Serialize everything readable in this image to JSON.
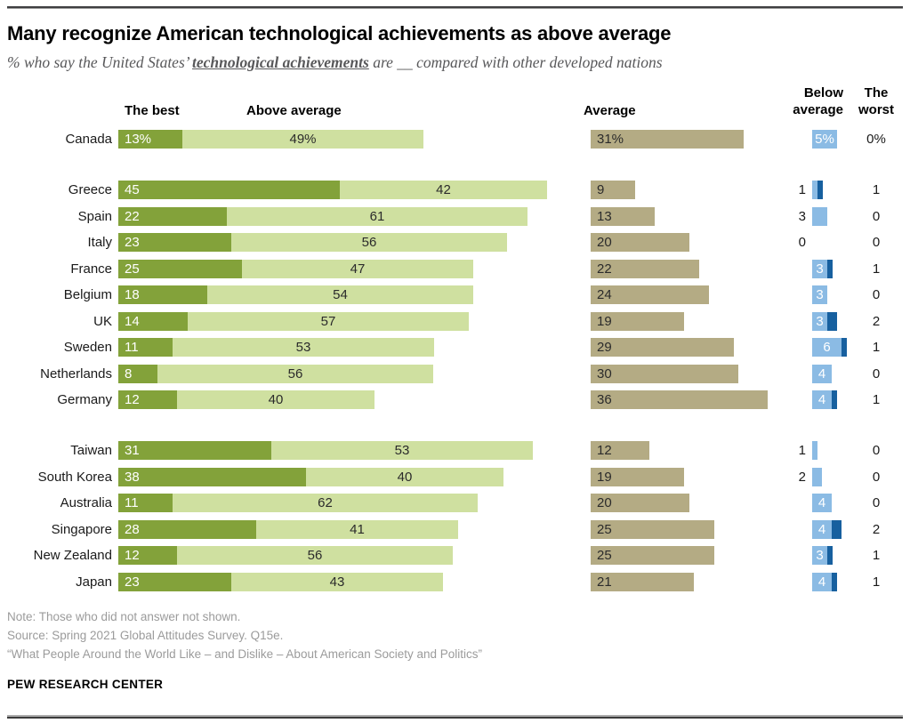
{
  "header": {
    "title": "Many recognize American technological achievements as above average",
    "subtitle_prefix": "% who say the United States’ ",
    "subtitle_emphasis": "technological achievements",
    "subtitle_suffix": " are __ compared with other developed nations"
  },
  "columns": {
    "best": "The best",
    "above": "Above average",
    "average": "Average",
    "below_line1": "Below",
    "below_line2": "average",
    "worst_line1": "The",
    "worst_line2": "worst"
  },
  "colors": {
    "best": "#83a23a",
    "above": "#cfe0a0",
    "average": "#b4ab84",
    "below": "#8bbbe4",
    "worst": "#17609f"
  },
  "rows": [
    {
      "country": "Canada",
      "best": 13,
      "above": 49,
      "average": 31,
      "below": 5,
      "worst": 0,
      "pct": true,
      "below_inside": true,
      "group": 0
    },
    {
      "country": "Greece",
      "best": 45,
      "above": 42,
      "average": 9,
      "below": 1,
      "worst": 1,
      "pct": false,
      "below_inside": false,
      "group": 1
    },
    {
      "country": "Spain",
      "best": 22,
      "above": 61,
      "average": 13,
      "below": 3,
      "worst": 0,
      "pct": false,
      "below_inside": false,
      "group": 1
    },
    {
      "country": "Italy",
      "best": 23,
      "above": 56,
      "average": 20,
      "below": 0,
      "worst": 0,
      "pct": false,
      "below_inside": false,
      "group": 1
    },
    {
      "country": "France",
      "best": 25,
      "above": 47,
      "average": 22,
      "below": 3,
      "worst": 1,
      "pct": false,
      "below_inside": true,
      "group": 1
    },
    {
      "country": "Belgium",
      "best": 18,
      "above": 54,
      "average": 24,
      "below": 3,
      "worst": 0,
      "pct": false,
      "below_inside": true,
      "group": 1
    },
    {
      "country": "UK",
      "best": 14,
      "above": 57,
      "average": 19,
      "below": 3,
      "worst": 2,
      "pct": false,
      "below_inside": true,
      "group": 1
    },
    {
      "country": "Sweden",
      "best": 11,
      "above": 53,
      "average": 29,
      "below": 6,
      "worst": 1,
      "pct": false,
      "below_inside": true,
      "group": 1
    },
    {
      "country": "Netherlands",
      "best": 8,
      "above": 56,
      "average": 30,
      "below": 4,
      "worst": 0,
      "pct": false,
      "below_inside": true,
      "group": 1
    },
    {
      "country": "Germany",
      "best": 12,
      "above": 40,
      "average": 36,
      "below": 4,
      "worst": 1,
      "pct": false,
      "below_inside": true,
      "group": 1
    },
    {
      "country": "Taiwan",
      "best": 31,
      "above": 53,
      "average": 12,
      "below": 1,
      "worst": 0,
      "pct": false,
      "below_inside": false,
      "group": 2
    },
    {
      "country": "South Korea",
      "best": 38,
      "above": 40,
      "average": 19,
      "below": 2,
      "worst": 0,
      "pct": false,
      "below_inside": false,
      "group": 2
    },
    {
      "country": "Australia",
      "best": 11,
      "above": 62,
      "average": 20,
      "below": 4,
      "worst": 0,
      "pct": false,
      "below_inside": true,
      "group": 2
    },
    {
      "country": "Singapore",
      "best": 28,
      "above": 41,
      "average": 25,
      "below": 4,
      "worst": 2,
      "pct": false,
      "below_inside": true,
      "group": 2
    },
    {
      "country": "New Zealand",
      "best": 12,
      "above": 56,
      "average": 25,
      "below": 3,
      "worst": 1,
      "pct": false,
      "below_inside": true,
      "group": 2
    },
    {
      "country": "Japan",
      "best": 23,
      "above": 43,
      "average": 21,
      "below": 4,
      "worst": 1,
      "pct": false,
      "below_inside": true,
      "group": 2
    }
  ],
  "chart_data": {
    "type": "bar",
    "orientation": "horizontal",
    "stacked": true,
    "unit": "%",
    "title": "Many recognize American technological achievements as above average",
    "subtitle": "% who say the United States’ technological achievements are __ compared with other developed nations",
    "categories": [
      "Canada",
      "Greece",
      "Spain",
      "Italy",
      "France",
      "Belgium",
      "UK",
      "Sweden",
      "Netherlands",
      "Germany",
      "Taiwan",
      "South Korea",
      "Australia",
      "Singapore",
      "New Zealand",
      "Japan"
    ],
    "category_groups": [
      [
        "Canada"
      ],
      [
        "Greece",
        "Spain",
        "Italy",
        "France",
        "Belgium",
        "UK",
        "Sweden",
        "Netherlands",
        "Germany"
      ],
      [
        "Taiwan",
        "South Korea",
        "Australia",
        "Singapore",
        "New Zealand",
        "Japan"
      ]
    ],
    "series": [
      {
        "name": "The best",
        "values": [
          13,
          45,
          22,
          23,
          25,
          18,
          14,
          11,
          8,
          12,
          31,
          38,
          11,
          28,
          12,
          23
        ]
      },
      {
        "name": "Above average",
        "values": [
          49,
          42,
          61,
          56,
          47,
          54,
          57,
          53,
          56,
          40,
          53,
          40,
          62,
          41,
          56,
          43
        ]
      },
      {
        "name": "Average",
        "values": [
          31,
          9,
          13,
          20,
          22,
          24,
          19,
          29,
          30,
          36,
          12,
          19,
          20,
          25,
          25,
          21
        ]
      },
      {
        "name": "Below average",
        "values": [
          5,
          1,
          3,
          0,
          3,
          3,
          3,
          6,
          4,
          4,
          1,
          2,
          4,
          4,
          3,
          4
        ]
      },
      {
        "name": "The worst",
        "values": [
          0,
          1,
          0,
          0,
          1,
          0,
          2,
          1,
          0,
          1,
          0,
          0,
          0,
          2,
          1,
          1
        ]
      }
    ],
    "xlim": [
      0,
      100
    ],
    "grid": false,
    "legend_position": "column-headers-top",
    "value_labels": "on-bars"
  },
  "footer": {
    "note": "Note: Those who did not answer not shown.",
    "source": "Source: Spring 2021 Global Attitudes Survey. Q15e.",
    "quote": "“What People Around the World Like – and Dislike – About American Society and Politics”",
    "brand": "PEW RESEARCH CENTER"
  }
}
